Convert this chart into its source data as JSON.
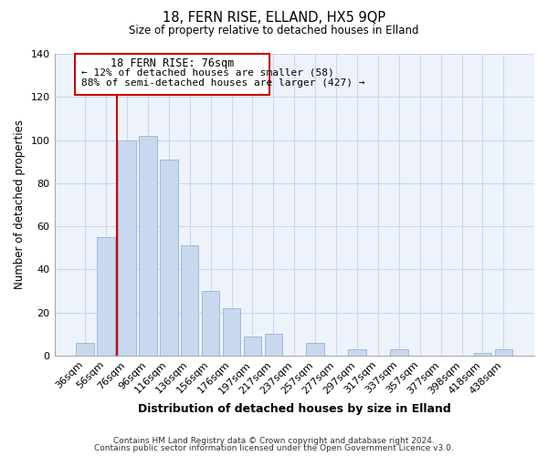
{
  "title1": "18, FERN RISE, ELLAND, HX5 9QP",
  "title2": "Size of property relative to detached houses in Elland",
  "xlabel": "Distribution of detached houses by size in Elland",
  "ylabel": "Number of detached properties",
  "bar_labels": [
    "36sqm",
    "56sqm",
    "76sqm",
    "96sqm",
    "116sqm",
    "136sqm",
    "156sqm",
    "176sqm",
    "197sqm",
    "217sqm",
    "237sqm",
    "257sqm",
    "277sqm",
    "297sqm",
    "317sqm",
    "337sqm",
    "357sqm",
    "377sqm",
    "398sqm",
    "418sqm",
    "438sqm"
  ],
  "bar_values": [
    6,
    55,
    100,
    102,
    91,
    51,
    30,
    22,
    9,
    10,
    0,
    6,
    0,
    3,
    0,
    3,
    0,
    0,
    0,
    1,
    3
  ],
  "bar_color": "#c8d8ee",
  "bar_edge_color": "#a0b8d8",
  "highlight_bar_index": 2,
  "highlight_line_color": "#cc0000",
  "ylim": [
    0,
    140
  ],
  "yticks": [
    0,
    20,
    40,
    60,
    80,
    100,
    120,
    140
  ],
  "annotation_title": "18 FERN RISE: 76sqm",
  "annotation_line1": "← 12% of detached houses are smaller (58)",
  "annotation_line2": "88% of semi-detached houses are larger (427) →",
  "annotation_box_color": "#ffffff",
  "annotation_box_edge": "#cc0000",
  "footer1": "Contains HM Land Registry data © Crown copyright and database right 2024.",
  "footer2": "Contains public sector information licensed under the Open Government Licence v3.0.",
  "grid_color": "#c8d8ee",
  "background_color": "#ffffff",
  "plot_bg_color": "#eef3fb"
}
